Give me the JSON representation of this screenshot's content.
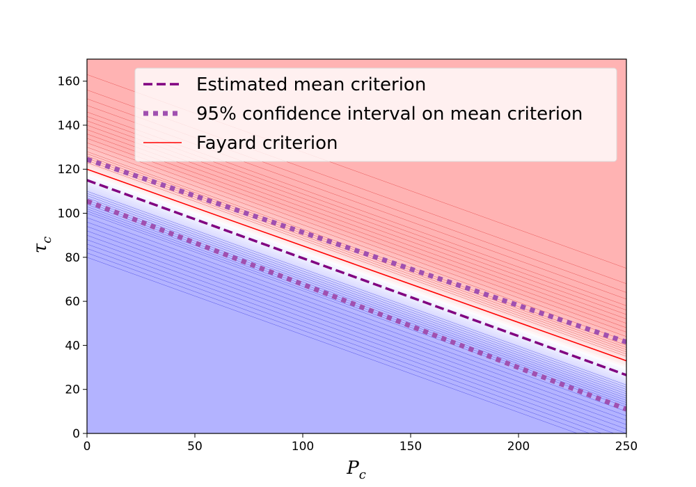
{
  "chart_data": {
    "type": "line",
    "title": "",
    "xlabel": "P_c",
    "ylabel": "τ_c",
    "xlabel_main": "P",
    "xlabel_sub": "c",
    "ylabel_main": "τ",
    "ylabel_sub": "c",
    "xlim": [
      0,
      250
    ],
    "ylim": [
      0,
      170
    ],
    "x_ticks": [
      0,
      50,
      100,
      150,
      200,
      250
    ],
    "y_ticks": [
      0,
      20,
      40,
      60,
      80,
      100,
      120,
      140,
      160
    ],
    "grid": false,
    "legend_position": "top-right",
    "background": {
      "description_values": "blue region below, red region above, gradient near criterion",
      "below_color": "#b3b3ff",
      "above_color": "#ffb3b3",
      "transition_color": "#ffffff",
      "contour_intercepts_blue": [
        80,
        82,
        84,
        86,
        88,
        90,
        92,
        94,
        96,
        98,
        100,
        101,
        102,
        103,
        104,
        105,
        106,
        107,
        108,
        109,
        110
      ],
      "contour_intercepts_red": [
        163,
        156,
        152,
        149,
        146,
        144,
        142,
        140,
        138,
        136,
        134,
        132,
        130,
        128,
        127,
        126,
        125,
        124,
        123
      ],
      "contour_slope": -0.352
    },
    "series": [
      {
        "name": "Estimated mean criterion",
        "style": "dashed",
        "color": "#800080",
        "x": [
          0,
          250
        ],
        "y": [
          115,
          26.5
        ]
      },
      {
        "name": "95% confidence interval on mean criterion",
        "style": "dotted",
        "color": "#a050b0",
        "x": [
          0,
          250
        ],
        "y": [
          124.5,
          41.5
        ]
      },
      {
        "name": "",
        "style": "dotted",
        "color": "#a050b0",
        "x": [
          0,
          250
        ],
        "y": [
          105.5,
          11
        ]
      },
      {
        "name": "Fayard criterion",
        "style": "solid",
        "color": "#ff0000",
        "x": [
          0,
          250
        ],
        "y": [
          120,
          33
        ]
      }
    ]
  }
}
